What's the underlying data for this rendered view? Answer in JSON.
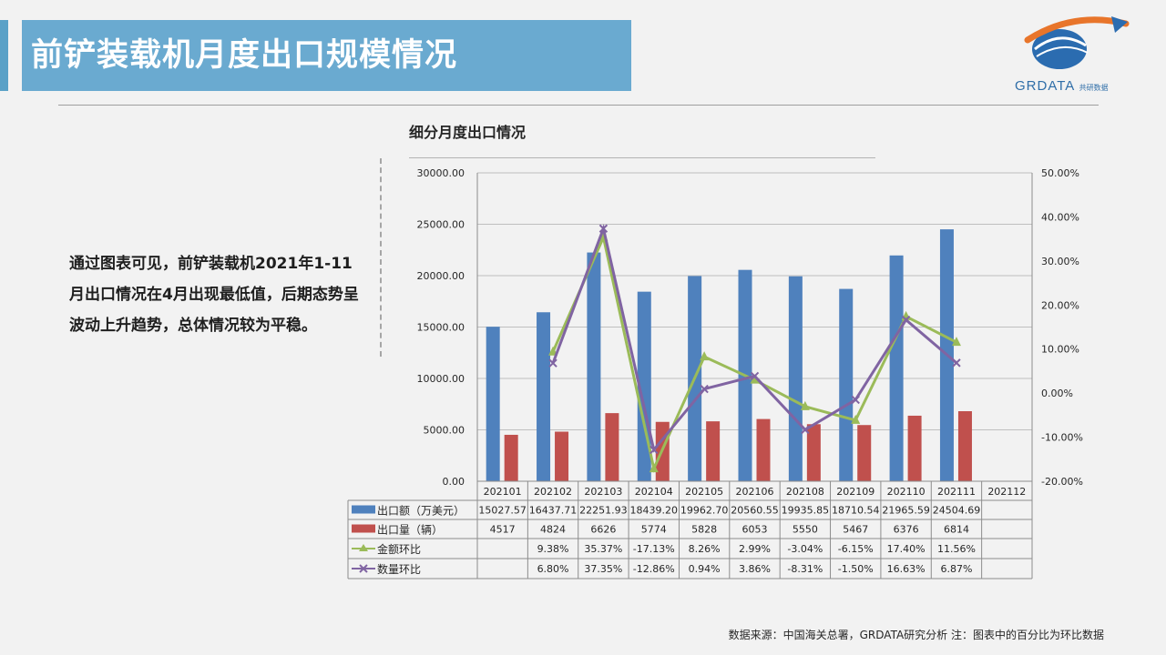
{
  "header": {
    "title": "前铲装载机月度出口规模情况"
  },
  "logo": {
    "brand": "GRDATA",
    "sub": "共研数据"
  },
  "description": "通过图表可见，前铲装载机2021年1-11月出口情况在4月出现最低值，后期态势呈波动上升趋势，总体情况较为平稳。",
  "chart_title": "细分月度出口情况",
  "source": "数据来源：中国海关总署，GRDATA研究分析  注：图表中的百分比为环比数据",
  "colors": {
    "bar_amount": "#4f81bd",
    "bar_volume": "#c0504d",
    "line_amount": "#9bbb59",
    "line_volume": "#8064a2",
    "title_bg": "#6aaad0"
  },
  "chart_data": {
    "type": "bar",
    "categories": [
      "202101",
      "202102",
      "202103",
      "202104",
      "202105",
      "202106",
      "202108",
      "202109",
      "202110",
      "202111",
      "202112"
    ],
    "y_left": {
      "min": 0,
      "max": 30000,
      "step": 5000,
      "tick_labels": [
        "0.00",
        "5000.00",
        "10000.00",
        "15000.00",
        "20000.00",
        "25000.00",
        "30000.00"
      ]
    },
    "y_right": {
      "min": -20,
      "max": 50,
      "step": 10,
      "tick_labels": [
        "-20.00%",
        "-10.00%",
        "0.00%",
        "10.00%",
        "20.00%",
        "30.00%",
        "40.00%",
        "50.00%"
      ]
    },
    "grid": true,
    "legend": "data-table",
    "series": [
      {
        "name": "出口额（万美元）",
        "type": "bar",
        "axis": "left",
        "values": [
          15027.57,
          16437.71,
          22251.93,
          18439.2,
          19962.7,
          20560.55,
          19935.85,
          18710.54,
          21965.59,
          24504.69,
          null
        ],
        "labels": [
          "15027.57",
          "16437.71",
          "22251.93",
          "18439.20",
          "19962.70",
          "20560.55",
          "19935.85",
          "18710.54",
          "21965.59",
          "24504.69",
          ""
        ]
      },
      {
        "name": "出口量（辆）",
        "type": "bar",
        "axis": "left",
        "values": [
          4517,
          4824,
          6626,
          5774,
          5828,
          6053,
          5550,
          5467,
          6376,
          6814,
          null
        ],
        "labels": [
          "4517",
          "4824",
          "6626",
          "5774",
          "5828",
          "6053",
          "5550",
          "5467",
          "6376",
          "6814",
          ""
        ]
      },
      {
        "name": "金额环比",
        "type": "line",
        "axis": "right",
        "marker": "triangle",
        "values": [
          null,
          9.38,
          35.37,
          -17.13,
          8.26,
          2.99,
          -3.04,
          -6.15,
          17.4,
          11.56,
          null
        ],
        "labels": [
          "",
          "9.38%",
          "35.37%",
          "-17.13%",
          "8.26%",
          "2.99%",
          "-3.04%",
          "-6.15%",
          "17.40%",
          "11.56%",
          ""
        ]
      },
      {
        "name": "数量环比",
        "type": "line",
        "axis": "right",
        "marker": "x",
        "values": [
          null,
          6.8,
          37.35,
          -12.86,
          0.94,
          3.86,
          -8.31,
          -1.5,
          16.63,
          6.87,
          null
        ],
        "labels": [
          "",
          "6.80%",
          "37.35%",
          "-12.86%",
          "0.94%",
          "3.86%",
          "-8.31%",
          "-1.50%",
          "16.63%",
          "6.87%",
          ""
        ]
      }
    ]
  }
}
